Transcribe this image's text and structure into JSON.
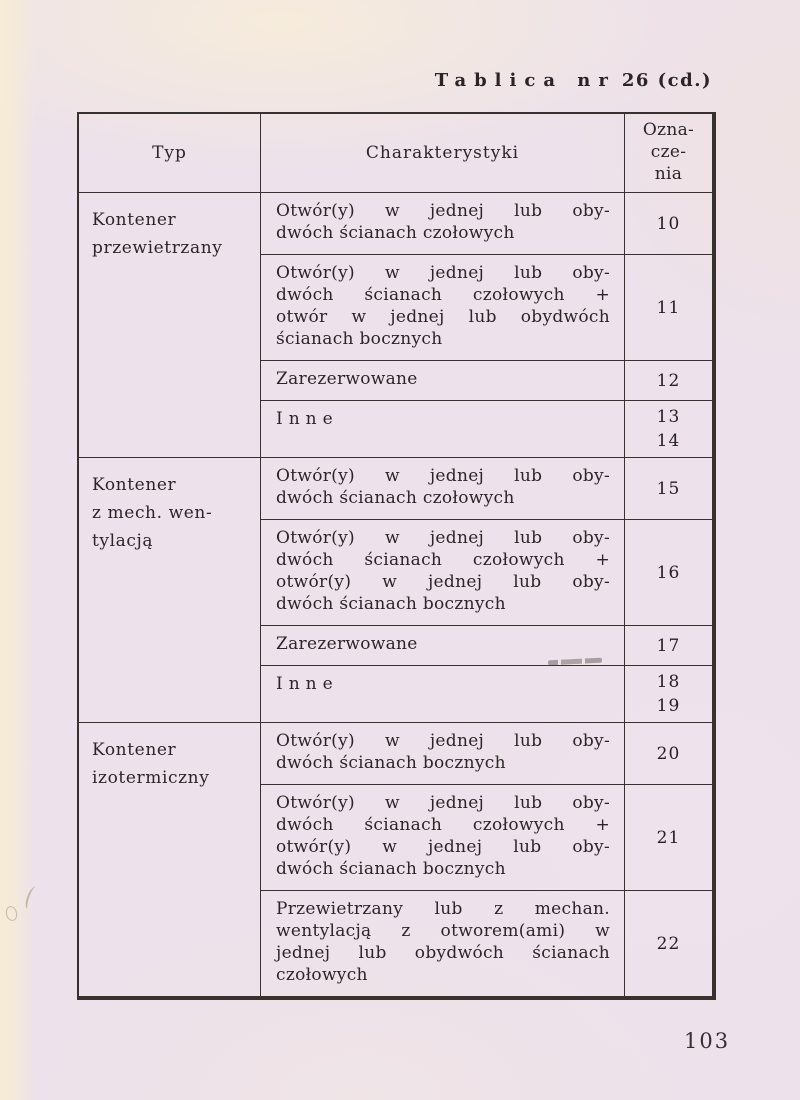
{
  "page": {
    "title": {
      "spaced": "Tablica nr",
      "rest": "26 (cd.)"
    },
    "page_number": "103"
  },
  "colors": {
    "paper": "#ede1eb",
    "paper_cream_edge": "#f6ecd6",
    "ink": "#2b2528",
    "rule_lines": "#37312f"
  },
  "table": {
    "headers": {
      "typ": "Typ",
      "charakterystyki": "Charakterystyki",
      "oznaczenia": "Ozna-\ncze-\nnia"
    },
    "groups": [
      {
        "type": "Kontener\nprzewietrzany",
        "rows": [
          {
            "lines": [
              "Otwór(y) w jednej lub oby-",
              "dwóch ścianach czołowych"
            ],
            "codes": [
              "10"
            ]
          },
          {
            "lines": [
              "Otwór(y) w jednej lub oby-",
              "dwóch ścianach czołowych +",
              "otwór w jednej lub obydwóch",
              "ścianach bocznych"
            ],
            "codes": [
              "11"
            ]
          },
          {
            "lines": [
              "Zarezerwowane"
            ],
            "codes": [
              "12"
            ]
          },
          {
            "lines": [
              "I n n e"
            ],
            "codes": [
              "13",
              "14"
            ]
          }
        ]
      },
      {
        "type": "Kontener\nz mech. wen-\ntylacją",
        "rows": [
          {
            "lines": [
              "Otwór(y) w jednej lub oby-",
              "dwóch ścianach czołowych"
            ],
            "codes": [
              "15"
            ]
          },
          {
            "lines": [
              "Otwór(y) w jednej lub oby-",
              "dwóch ścianach czołowych +",
              "otwór(y) w jednej lub oby-",
              "dwóch ścianach bocznych"
            ],
            "codes": [
              "16"
            ]
          },
          {
            "lines": [
              "Zarezerwowane"
            ],
            "codes": [
              "17"
            ]
          },
          {
            "lines": [
              "I n n e"
            ],
            "codes": [
              "18",
              "19"
            ]
          }
        ]
      },
      {
        "type": "Kontener\nizotermiczny",
        "rows": [
          {
            "lines": [
              "Otwór(y) w jednej lub oby-",
              "dwóch ścianach bocznych"
            ],
            "codes": [
              "20"
            ]
          },
          {
            "lines": [
              "Otwór(y) w jednej lub oby-",
              "dwóch ścianach czołowych +",
              "otwór(y) w jednej lub oby-",
              "dwóch ścianach bocznych"
            ],
            "codes": [
              "21"
            ]
          },
          {
            "lines": [
              "Przewietrzany lub z mechan.",
              "wentylacją z otworem(ami) w",
              "jednej lub obydwóch ścianach",
              "czołowych"
            ],
            "codes": [
              "22"
            ]
          }
        ]
      }
    ]
  }
}
